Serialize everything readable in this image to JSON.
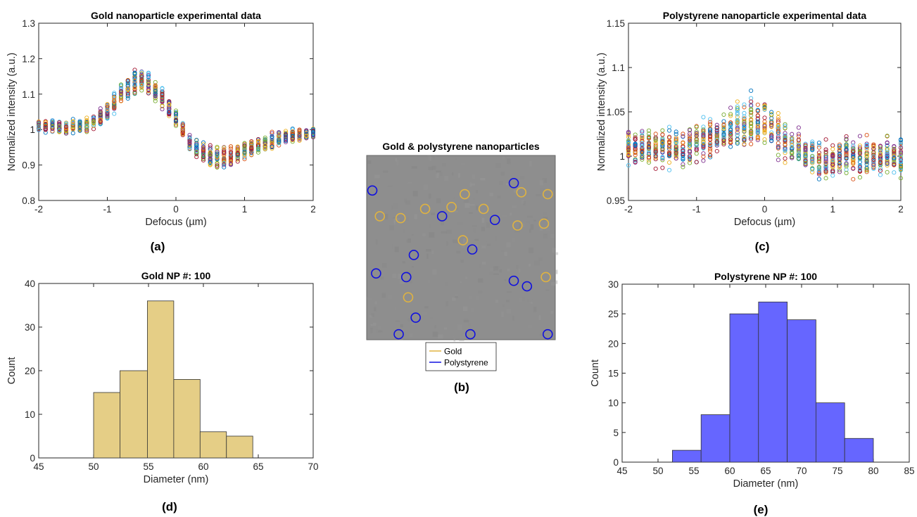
{
  "chart_data": [
    {
      "panel": "(a)",
      "type": "scatter",
      "title": "Gold nanoparticle experimental data",
      "xlabel": "Defocus (µm)",
      "ylabel": "Normalized intensity (a.u.)",
      "xlim": [
        -2,
        2
      ],
      "ylim": [
        0.8,
        1.3
      ],
      "xticks": [
        -2,
        -1,
        0,
        1,
        2
      ],
      "yticks": [
        0.8,
        0.9,
        1,
        1.1,
        1.2,
        1.3
      ],
      "series_count": 100,
      "profile": {
        "x": [
          -2.0,
          -1.8,
          -1.6,
          -1.4,
          -1.2,
          -1.0,
          -0.8,
          -0.6,
          -0.5,
          -0.4,
          -0.2,
          0.0,
          0.2,
          0.4,
          0.6,
          0.8,
          1.0,
          1.2,
          1.4,
          1.6,
          1.8,
          2.0
        ],
        "y": [
          1.01,
          1.01,
          1.005,
          1.01,
          1.02,
          1.05,
          1.1,
          1.135,
          1.14,
          1.13,
          1.09,
          1.03,
          0.96,
          0.93,
          0.92,
          0.925,
          0.94,
          0.955,
          0.97,
          0.98,
          0.985,
          0.99
        ],
        "spread": [
          0.015,
          0.015,
          0.015,
          0.015,
          0.015,
          0.02,
          0.025,
          0.03,
          0.03,
          0.028,
          0.025,
          0.02,
          0.02,
          0.025,
          0.03,
          0.025,
          0.02,
          0.02,
          0.018,
          0.015,
          0.015,
          0.015
        ]
      },
      "marker": "circle",
      "grid": false
    },
    {
      "panel": "(c)",
      "type": "scatter",
      "title": "Polystyrene nanoparticle experimental data",
      "xlabel": "Defocus (µm)",
      "ylabel": "Normalized intensity (a.u.)",
      "xlim": [
        -2,
        2
      ],
      "ylim": [
        0.95,
        1.15
      ],
      "xticks": [
        -2,
        -1,
        0,
        1,
        2
      ],
      "yticks": [
        0.95,
        1,
        1.05,
        1.1,
        1.15
      ],
      "series_count": 100,
      "profile": {
        "x": [
          -2.0,
          -1.8,
          -1.6,
          -1.4,
          -1.2,
          -1.0,
          -0.8,
          -0.6,
          -0.4,
          -0.2,
          0.0,
          0.2,
          0.4,
          0.6,
          0.8,
          1.0,
          1.2,
          1.4,
          1.6,
          1.8,
          2.0
        ],
        "y": [
          1.01,
          1.01,
          1.01,
          1.01,
          1.01,
          1.015,
          1.02,
          1.025,
          1.035,
          1.04,
          1.04,
          1.025,
          1.01,
          1.0,
          0.995,
          0.995,
          1.0,
          1.0,
          1.0,
          1.0,
          1.0
        ],
        "spread": [
          0.018,
          0.018,
          0.018,
          0.018,
          0.018,
          0.018,
          0.018,
          0.02,
          0.022,
          0.025,
          0.022,
          0.02,
          0.018,
          0.018,
          0.018,
          0.018,
          0.018,
          0.018,
          0.018,
          0.018,
          0.018
        ]
      },
      "marker": "circle",
      "grid": false
    },
    {
      "panel": "(b)",
      "type": "image",
      "title": "Gold & polystyrene nanoparticles",
      "legend": [
        {
          "name": "Gold",
          "color": "#E0B340"
        },
        {
          "name": "Polystyrene",
          "color": "#1010E0"
        }
      ],
      "legend_position": "below",
      "gold_circles": [
        [
          0.52,
          0.21
        ],
        [
          0.82,
          0.2
        ],
        [
          0.96,
          0.21
        ],
        [
          0.07,
          0.33
        ],
        [
          0.18,
          0.34
        ],
        [
          0.31,
          0.29
        ],
        [
          0.45,
          0.28
        ],
        [
          0.62,
          0.29
        ],
        [
          0.8,
          0.38
        ],
        [
          0.94,
          0.37
        ],
        [
          0.51,
          0.46
        ],
        [
          0.95,
          0.66
        ],
        [
          0.22,
          0.77
        ]
      ],
      "polystyrene_circles": [
        [
          0.03,
          0.19
        ],
        [
          0.78,
          0.15
        ],
        [
          0.4,
          0.33
        ],
        [
          0.68,
          0.35
        ],
        [
          0.25,
          0.54
        ],
        [
          0.56,
          0.51
        ],
        [
          0.05,
          0.64
        ],
        [
          0.21,
          0.66
        ],
        [
          0.78,
          0.68
        ],
        [
          0.85,
          0.71
        ],
        [
          0.26,
          0.88
        ],
        [
          0.17,
          0.97
        ],
        [
          0.55,
          0.97
        ],
        [
          0.96,
          0.97
        ]
      ]
    },
    {
      "panel": "(d)",
      "type": "bar",
      "title": "Gold NP #: 100",
      "xlabel": "Diameter (nm)",
      "ylabel": "Count",
      "xlim": [
        45,
        70
      ],
      "ylim": [
        0,
        40
      ],
      "xticks": [
        45,
        50,
        55,
        60,
        65,
        70
      ],
      "yticks": [
        0,
        10,
        20,
        30,
        40
      ],
      "bin_edges": [
        50,
        52.4,
        54.9,
        57.3,
        59.7,
        62.1,
        64.5
      ],
      "counts": [
        15,
        20,
        36,
        18,
        6,
        5
      ],
      "color": "#E5CE86"
    },
    {
      "panel": "(e)",
      "type": "bar",
      "title": "Polystyrene NP #: 100",
      "xlabel": "Diameter (nm)",
      "ylabel": "Count",
      "xlim": [
        45,
        85
      ],
      "ylim": [
        0,
        30
      ],
      "xticks": [
        45,
        50,
        55,
        60,
        65,
        70,
        75,
        80,
        85
      ],
      "yticks": [
        0,
        5,
        10,
        15,
        20,
        25,
        30
      ],
      "bin_edges": [
        52,
        56,
        60,
        64,
        68,
        72,
        76,
        80
      ],
      "counts": [
        2,
        8,
        25,
        27,
        24,
        10,
        4
      ],
      "color": "#6666FF"
    }
  ],
  "panel_labels": [
    "(a)",
    "(b)",
    "(c)",
    "(d)",
    "(e)"
  ],
  "colors": {
    "matlab_order": [
      "#0072BD",
      "#D95319",
      "#EDB120",
      "#7E2F8E",
      "#77AC30",
      "#4DBEEE",
      "#A2142F"
    ],
    "gold": "#E0B340",
    "polystyrene": "#1010E0",
    "gold_bar": "#E5CE86",
    "ps_bar": "#6666FF",
    "image_bg": "#8E8E8E"
  }
}
